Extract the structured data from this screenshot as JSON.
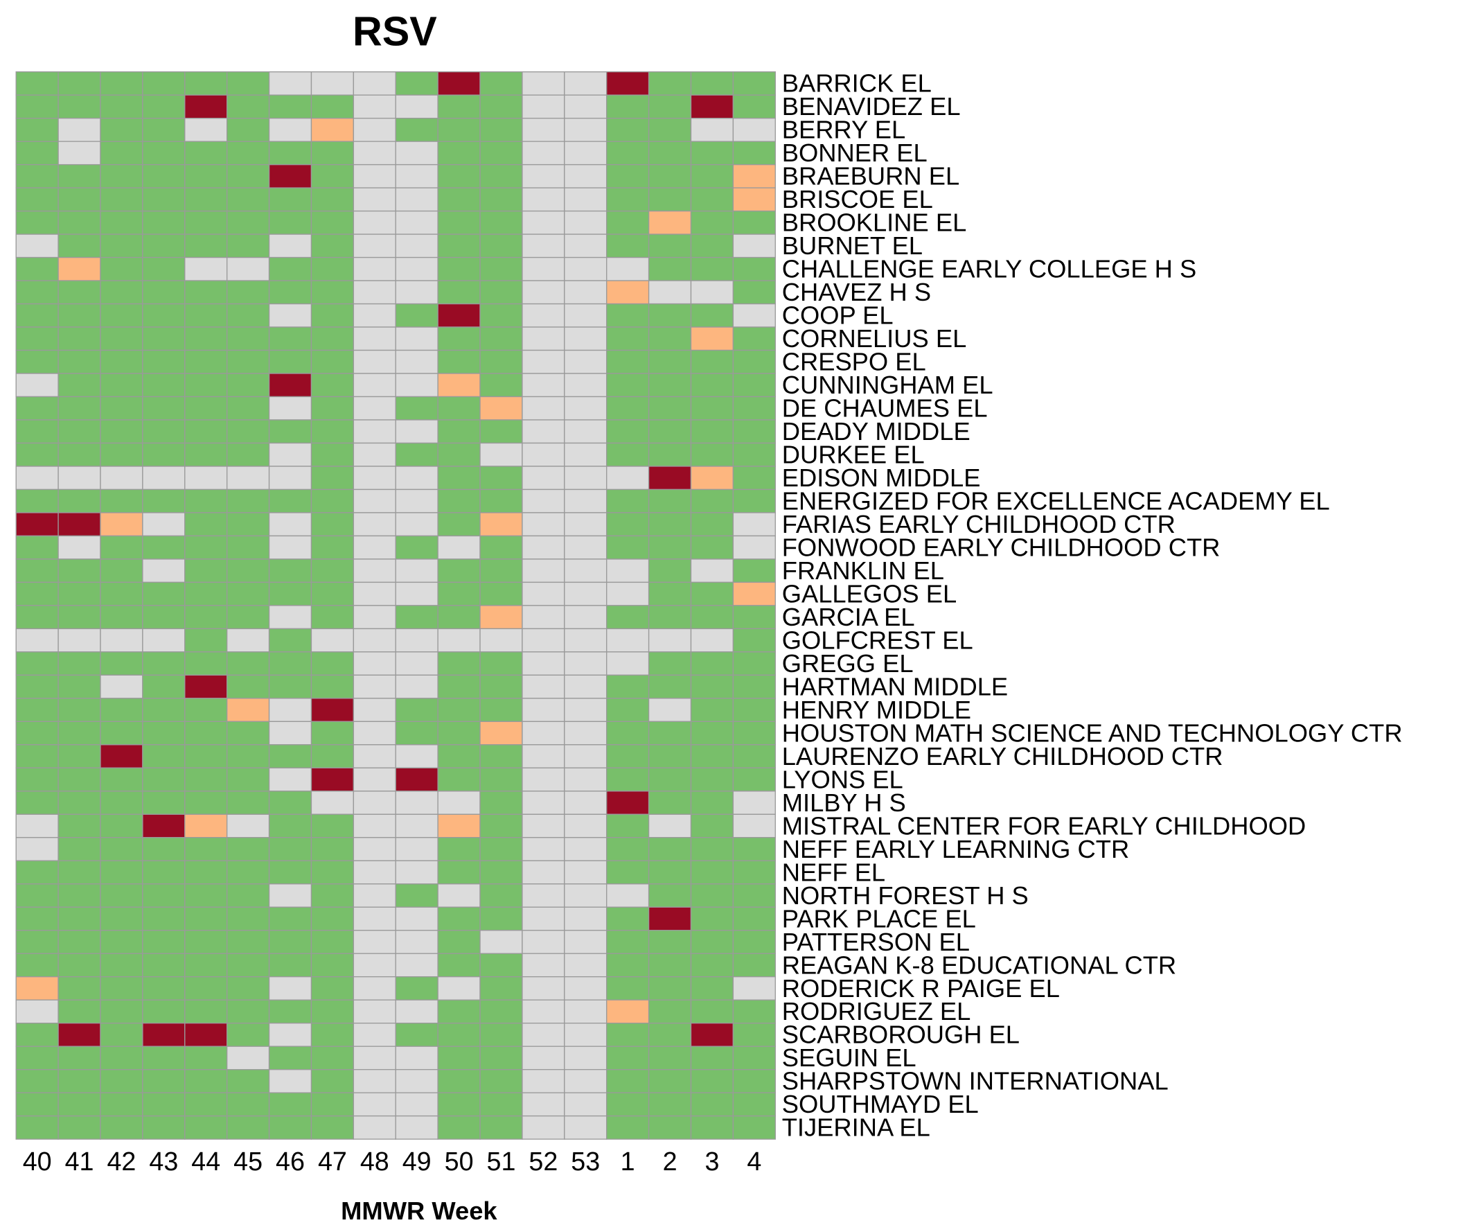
{
  "chart_data": {
    "type": "heatmap",
    "title": "RSV",
    "xlabel": "MMWR Week",
    "x": [
      "40",
      "41",
      "42",
      "43",
      "44",
      "45",
      "46",
      "47",
      "48",
      "49",
      "50",
      "51",
      "52",
      "53",
      "1",
      "2",
      "3",
      "4"
    ],
    "categories": [
      "BARRICK EL",
      "BENAVIDEZ EL",
      "BERRY EL",
      "BONNER EL",
      "BRAEBURN EL",
      "BRISCOE EL",
      "BROOKLINE EL",
      "BURNET EL",
      "CHALLENGE EARLY COLLEGE H S",
      "CHAVEZ H S",
      "COOP EL",
      "CORNELIUS EL",
      "CRESPO EL",
      "CUNNINGHAM EL",
      "DE CHAUMES EL",
      "DEADY MIDDLE",
      "DURKEE EL",
      "EDISON MIDDLE",
      "ENERGIZED FOR EXCELLENCE ACADEMY EL",
      "FARIAS EARLY CHILDHOOD CTR",
      "FONWOOD EARLY CHILDHOOD CTR",
      "FRANKLIN EL",
      "GALLEGOS EL",
      "GARCIA EL",
      "GOLFCREST EL",
      "GREGG EL",
      "HARTMAN MIDDLE",
      "HENRY MIDDLE",
      "HOUSTON MATH SCIENCE AND TECHNOLOGY CTR",
      "LAURENZO EARLY CHILDHOOD CTR",
      "LYONS EL",
      "MILBY H S",
      "MISTRAL CENTER FOR EARLY CHILDHOOD",
      "NEFF EARLY LEARNING CTR",
      "NEFF EL",
      "NORTH FOREST H S",
      "PARK PLACE EL",
      "PATTERSON EL",
      "REAGAN K-8 EDUCATIONAL CTR",
      "RODERICK R PAIGE EL",
      "RODRIGUEZ EL",
      "SCARBOROUGH EL",
      "SEGUIN EL",
      "SHARPSTOWN INTERNATIONAL",
      "SOUTHMAYD EL",
      "TIJERINA EL"
    ],
    "colors": [
      "#dcdcdc",
      "#78bf6a",
      "#fdb67f",
      "#990b24"
    ],
    "values": [
      [
        1,
        1,
        1,
        1,
        1,
        1,
        0,
        0,
        0,
        1,
        3,
        1,
        0,
        0,
        3,
        1,
        1,
        1
      ],
      [
        1,
        1,
        1,
        1,
        3,
        1,
        1,
        1,
        0,
        0,
        1,
        1,
        0,
        0,
        1,
        1,
        3,
        1
      ],
      [
        1,
        0,
        1,
        1,
        0,
        1,
        0,
        2,
        0,
        1,
        1,
        1,
        0,
        0,
        1,
        1,
        0,
        0
      ],
      [
        1,
        0,
        1,
        1,
        1,
        1,
        1,
        1,
        0,
        0,
        1,
        1,
        0,
        0,
        1,
        1,
        1,
        1
      ],
      [
        1,
        1,
        1,
        1,
        1,
        1,
        3,
        1,
        0,
        0,
        1,
        1,
        0,
        0,
        1,
        1,
        1,
        2
      ],
      [
        1,
        1,
        1,
        1,
        1,
        1,
        1,
        1,
        0,
        0,
        1,
        1,
        0,
        0,
        1,
        1,
        1,
        2
      ],
      [
        1,
        1,
        1,
        1,
        1,
        1,
        1,
        1,
        0,
        0,
        1,
        1,
        0,
        0,
        1,
        2,
        1,
        1
      ],
      [
        0,
        1,
        1,
        1,
        1,
        1,
        0,
        1,
        0,
        0,
        1,
        1,
        0,
        0,
        1,
        1,
        1,
        0
      ],
      [
        1,
        2,
        1,
        1,
        0,
        0,
        1,
        1,
        0,
        0,
        1,
        1,
        0,
        0,
        0,
        1,
        1,
        1
      ],
      [
        1,
        1,
        1,
        1,
        1,
        1,
        1,
        1,
        0,
        0,
        1,
        1,
        0,
        0,
        2,
        0,
        0,
        1
      ],
      [
        1,
        1,
        1,
        1,
        1,
        1,
        0,
        1,
        0,
        1,
        3,
        1,
        0,
        0,
        1,
        1,
        1,
        0
      ],
      [
        1,
        1,
        1,
        1,
        1,
        1,
        1,
        1,
        0,
        0,
        1,
        1,
        0,
        0,
        1,
        1,
        2,
        1
      ],
      [
        1,
        1,
        1,
        1,
        1,
        1,
        1,
        1,
        0,
        0,
        1,
        1,
        0,
        0,
        1,
        1,
        1,
        1
      ],
      [
        0,
        1,
        1,
        1,
        1,
        1,
        3,
        1,
        0,
        0,
        2,
        1,
        0,
        0,
        1,
        1,
        1,
        1
      ],
      [
        1,
        1,
        1,
        1,
        1,
        1,
        0,
        1,
        0,
        1,
        1,
        2,
        0,
        0,
        1,
        1,
        1,
        1
      ],
      [
        1,
        1,
        1,
        1,
        1,
        1,
        1,
        1,
        0,
        0,
        1,
        1,
        0,
        0,
        1,
        1,
        1,
        1
      ],
      [
        1,
        1,
        1,
        1,
        1,
        1,
        0,
        1,
        0,
        1,
        1,
        0,
        0,
        0,
        1,
        1,
        1,
        1
      ],
      [
        0,
        0,
        0,
        0,
        0,
        0,
        0,
        1,
        0,
        0,
        1,
        1,
        0,
        0,
        0,
        3,
        2,
        1
      ],
      [
        1,
        1,
        1,
        1,
        1,
        1,
        1,
        1,
        0,
        0,
        1,
        1,
        0,
        0,
        1,
        1,
        1,
        1
      ],
      [
        3,
        3,
        2,
        0,
        1,
        1,
        0,
        1,
        0,
        0,
        1,
        2,
        0,
        0,
        1,
        1,
        1,
        0
      ],
      [
        1,
        0,
        1,
        1,
        1,
        1,
        0,
        1,
        0,
        1,
        0,
        1,
        0,
        0,
        1,
        1,
        1,
        0
      ],
      [
        1,
        1,
        1,
        0,
        1,
        1,
        1,
        1,
        0,
        0,
        1,
        1,
        0,
        0,
        0,
        1,
        0,
        1
      ],
      [
        1,
        1,
        1,
        1,
        1,
        1,
        1,
        1,
        0,
        0,
        1,
        1,
        0,
        0,
        0,
        1,
        1,
        2
      ],
      [
        1,
        1,
        1,
        1,
        1,
        1,
        0,
        1,
        0,
        1,
        1,
        2,
        0,
        0,
        1,
        1,
        1,
        1
      ],
      [
        0,
        0,
        0,
        0,
        1,
        0,
        1,
        0,
        0,
        0,
        0,
        0,
        0,
        0,
        0,
        0,
        0,
        1
      ],
      [
        1,
        1,
        1,
        1,
        1,
        1,
        1,
        1,
        0,
        0,
        1,
        1,
        0,
        0,
        0,
        1,
        1,
        1
      ],
      [
        1,
        1,
        0,
        1,
        3,
        1,
        1,
        1,
        0,
        0,
        1,
        1,
        0,
        0,
        1,
        1,
        1,
        1
      ],
      [
        1,
        1,
        1,
        1,
        1,
        2,
        0,
        3,
        0,
        1,
        1,
        1,
        0,
        0,
        1,
        0,
        1,
        1
      ],
      [
        1,
        1,
        1,
        1,
        1,
        1,
        0,
        1,
        0,
        1,
        1,
        2,
        0,
        0,
        1,
        1,
        1,
        1
      ],
      [
        1,
        1,
        3,
        1,
        1,
        1,
        1,
        1,
        0,
        0,
        1,
        1,
        0,
        0,
        1,
        1,
        1,
        1
      ],
      [
        1,
        1,
        1,
        1,
        1,
        1,
        0,
        3,
        0,
        3,
        1,
        1,
        0,
        0,
        1,
        1,
        1,
        1
      ],
      [
        1,
        1,
        1,
        1,
        1,
        1,
        1,
        0,
        0,
        0,
        0,
        1,
        0,
        0,
        3,
        1,
        1,
        0
      ],
      [
        0,
        1,
        1,
        3,
        2,
        0,
        1,
        1,
        0,
        0,
        2,
        1,
        0,
        0,
        1,
        0,
        1,
        0
      ],
      [
        0,
        1,
        1,
        1,
        1,
        1,
        1,
        1,
        0,
        0,
        1,
        1,
        0,
        0,
        1,
        1,
        1,
        1
      ],
      [
        1,
        1,
        1,
        1,
        1,
        1,
        1,
        1,
        0,
        0,
        1,
        1,
        0,
        0,
        1,
        1,
        1,
        1
      ],
      [
        1,
        1,
        1,
        1,
        1,
        1,
        0,
        1,
        0,
        1,
        0,
        1,
        0,
        0,
        0,
        1,
        1,
        1
      ],
      [
        1,
        1,
        1,
        1,
        1,
        1,
        1,
        1,
        0,
        0,
        1,
        1,
        0,
        0,
        1,
        3,
        1,
        1
      ],
      [
        1,
        1,
        1,
        1,
        1,
        1,
        1,
        1,
        0,
        0,
        1,
        0,
        0,
        0,
        1,
        1,
        1,
        1
      ],
      [
        1,
        1,
        1,
        1,
        1,
        1,
        1,
        1,
        0,
        0,
        1,
        1,
        0,
        0,
        1,
        1,
        1,
        1
      ],
      [
        2,
        1,
        1,
        1,
        1,
        1,
        0,
        1,
        0,
        1,
        0,
        1,
        0,
        0,
        1,
        1,
        1,
        0
      ],
      [
        0,
        1,
        1,
        1,
        1,
        1,
        1,
        1,
        0,
        0,
        1,
        1,
        0,
        0,
        2,
        1,
        1,
        1
      ],
      [
        1,
        3,
        1,
        3,
        3,
        1,
        0,
        1,
        0,
        1,
        1,
        1,
        0,
        0,
        1,
        1,
        3,
        1
      ],
      [
        1,
        1,
        1,
        1,
        1,
        0,
        1,
        1,
        0,
        0,
        1,
        1,
        0,
        0,
        1,
        1,
        1,
        1
      ],
      [
        1,
        1,
        1,
        1,
        1,
        1,
        0,
        1,
        0,
        0,
        1,
        1,
        0,
        0,
        1,
        1,
        1,
        1
      ],
      [
        1,
        1,
        1,
        1,
        1,
        1,
        1,
        1,
        0,
        0,
        1,
        1,
        0,
        0,
        1,
        1,
        1,
        1
      ],
      [
        1,
        1,
        1,
        1,
        1,
        1,
        1,
        1,
        0,
        0,
        1,
        1,
        0,
        0,
        1,
        1,
        1,
        1
      ]
    ]
  }
}
